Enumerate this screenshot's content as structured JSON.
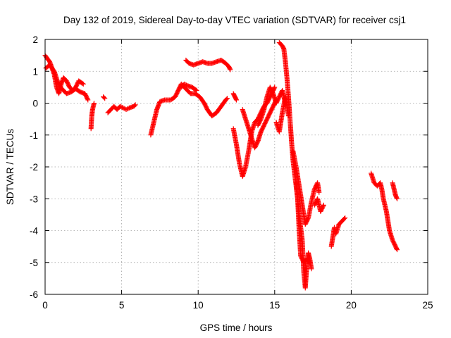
{
  "chart_data": {
    "type": "scatter",
    "title": "Day 132 of 2019, Sidereal Day-to-day VTEC variation (SDTVAR) for receiver csj1",
    "xlabel": "GPS time / hours",
    "ylabel": "SDTVAR / TECUs",
    "xlim": [
      0,
      25
    ],
    "ylim": [
      -6,
      2
    ],
    "xticks": [
      "0",
      "5",
      "10",
      "15",
      "20",
      "25"
    ],
    "yticks": [
      "-6",
      "-5",
      "-4",
      "-3",
      "-2",
      "-1",
      "0",
      "1",
      "2"
    ],
    "grid": true,
    "marker": "plus",
    "color": "#ff0000",
    "series": [
      {
        "name": "csj1",
        "segments": [
          [
            [
              0.0,
              1.5
            ],
            [
              0.15,
              1.4
            ],
            [
              0.3,
              1.3
            ],
            [
              0.45,
              1.1
            ],
            [
              0.6,
              0.9
            ],
            [
              0.75,
              0.5
            ],
            [
              0.9,
              0.3
            ],
            [
              1.05,
              0.6
            ],
            [
              1.2,
              0.8
            ],
            [
              1.4,
              0.7
            ],
            [
              1.6,
              0.5
            ],
            [
              1.8,
              0.4
            ],
            [
              2.0,
              0.5
            ],
            [
              2.2,
              0.7
            ],
            [
              2.5,
              0.6
            ]
          ],
          [
            [
              0.05,
              1.1
            ],
            [
              0.3,
              1.2
            ],
            [
              0.6,
              1.0
            ],
            [
              0.8,
              0.7
            ],
            [
              1.0,
              0.5
            ],
            [
              1.2,
              0.4
            ],
            [
              1.4,
              0.3
            ],
            [
              1.7,
              0.35
            ],
            [
              2.0,
              0.45
            ],
            [
              2.3,
              0.35
            ],
            [
              2.6,
              0.3
            ],
            [
              2.8,
              0.1
            ]
          ],
          [
            [
              3.0,
              -0.8
            ],
            [
              3.05,
              -0.4
            ],
            [
              3.1,
              -0.2
            ],
            [
              3.2,
              0.0
            ]
          ],
          [
            [
              3.8,
              0.2
            ],
            [
              3.9,
              0.15
            ]
          ],
          [
            [
              4.1,
              -0.3
            ],
            [
              4.3,
              -0.2
            ],
            [
              4.5,
              -0.1
            ],
            [
              4.7,
              -0.2
            ],
            [
              4.9,
              -0.1
            ],
            [
              5.1,
              -0.15
            ],
            [
              5.3,
              -0.2
            ],
            [
              5.5,
              -0.15
            ],
            [
              5.8,
              -0.1
            ],
            [
              5.9,
              -0.05
            ]
          ],
          [
            [
              6.9,
              -1.0
            ],
            [
              7.1,
              -0.6
            ],
            [
              7.3,
              -0.2
            ],
            [
              7.5,
              0.05
            ],
            [
              7.8,
              0.1
            ],
            [
              8.2,
              0.1
            ],
            [
              8.5,
              0.2
            ],
            [
              8.7,
              0.4
            ],
            [
              8.9,
              0.6
            ],
            [
              9.1,
              0.5
            ],
            [
              9.3,
              0.4
            ],
            [
              9.5,
              0.3
            ],
            [
              9.8,
              0.3
            ],
            [
              10.1,
              0.2
            ],
            [
              10.4,
              0.0
            ],
            [
              10.6,
              -0.2
            ],
            [
              10.9,
              -0.4
            ],
            [
              11.2,
              -0.3
            ],
            [
              11.5,
              -0.1
            ],
            [
              11.8,
              0.1
            ],
            [
              11.9,
              0.15
            ]
          ],
          [
            [
              8.9,
              0.5
            ],
            [
              9.1,
              0.6
            ],
            [
              9.3,
              0.55
            ],
            [
              9.6,
              0.5
            ],
            [
              9.9,
              0.4
            ]
          ],
          [
            [
              9.2,
              1.35
            ],
            [
              9.4,
              1.25
            ],
            [
              9.7,
              1.2
            ],
            [
              10.0,
              1.25
            ],
            [
              10.3,
              1.3
            ],
            [
              10.6,
              1.25
            ],
            [
              10.9,
              1.25
            ],
            [
              11.2,
              1.3
            ],
            [
              11.5,
              1.35
            ],
            [
              11.8,
              1.25
            ],
            [
              12.0,
              1.15
            ],
            [
              12.1,
              1.05
            ]
          ],
          [
            [
              12.3,
              0.3
            ],
            [
              12.4,
              0.2
            ],
            [
              12.5,
              0.1
            ]
          ],
          [
            [
              12.3,
              -0.8
            ],
            [
              12.5,
              -1.3
            ],
            [
              12.7,
              -1.9
            ],
            [
              12.9,
              -2.3
            ],
            [
              13.1,
              -2.0
            ],
            [
              13.3,
              -1.5
            ],
            [
              13.5,
              -0.9
            ],
            [
              13.7,
              -0.6
            ],
            [
              13.9,
              -0.5
            ],
            [
              14.1,
              -0.3
            ],
            [
              14.3,
              -0.1
            ],
            [
              14.5,
              0.0
            ],
            [
              14.7,
              0.2
            ],
            [
              14.9,
              0.4
            ],
            [
              15.0,
              0.5
            ]
          ],
          [
            [
              12.9,
              -0.2
            ],
            [
              13.1,
              -0.5
            ],
            [
              13.3,
              -0.8
            ],
            [
              13.5,
              -1.1
            ],
            [
              13.7,
              -1.4
            ],
            [
              13.9,
              -1.2
            ],
            [
              14.1,
              -0.9
            ],
            [
              14.3,
              -0.7
            ],
            [
              14.5,
              -0.5
            ],
            [
              14.7,
              -0.3
            ],
            [
              14.9,
              -0.1
            ],
            [
              15.1,
              0.1
            ]
          ],
          [
            [
              13.9,
              -0.7
            ],
            [
              14.1,
              -0.5
            ],
            [
              14.3,
              -0.2
            ],
            [
              14.5,
              0.2
            ],
            [
              14.7,
              0.5
            ],
            [
              14.9,
              0.3
            ],
            [
              15.1,
              0.0
            ],
            [
              15.3,
              0.2
            ],
            [
              15.5,
              0.4
            ],
            [
              15.7,
              0.0
            ]
          ],
          [
            [
              15.1,
              -0.6
            ],
            [
              15.3,
              -0.9
            ],
            [
              15.5,
              -0.3
            ],
            [
              15.7,
              0.2
            ],
            [
              15.9,
              -0.4
            ]
          ],
          [
            [
              15.3,
              1.9
            ],
            [
              15.5,
              1.8
            ],
            [
              15.6,
              1.7
            ],
            [
              15.7,
              1.3
            ],
            [
              15.8,
              0.8
            ],
            [
              15.9,
              0.2
            ],
            [
              16.0,
              -0.5
            ],
            [
              16.1,
              -1.2
            ],
            [
              16.2,
              -1.8
            ],
            [
              16.3,
              -2.2
            ],
            [
              16.5,
              -3.0
            ],
            [
              16.6,
              -4.0
            ],
            [
              16.7,
              -4.8
            ],
            [
              16.9,
              -5.0
            ],
            [
              17.1,
              -4.9
            ],
            [
              17.3,
              -5.0
            ]
          ],
          [
            [
              16.2,
              -1.5
            ],
            [
              16.4,
              -2.0
            ],
            [
              16.6,
              -2.6
            ],
            [
              16.8,
              -3.2
            ],
            [
              17.0,
              -3.8
            ],
            [
              17.2,
              -3.6
            ],
            [
              17.4,
              -3.1
            ],
            [
              17.6,
              -2.7
            ],
            [
              17.8,
              -2.5
            ],
            [
              17.9,
              -2.8
            ]
          ],
          [
            [
              16.4,
              -2.5
            ],
            [
              16.6,
              -3.5
            ],
            [
              16.8,
              -4.3
            ],
            [
              16.9,
              -5.3
            ],
            [
              17.0,
              -5.8
            ],
            [
              17.1,
              -5.1
            ],
            [
              17.2,
              -4.7
            ],
            [
              17.3,
              -4.9
            ],
            [
              17.4,
              -5.2
            ]
          ],
          [
            [
              17.6,
              -3.2
            ],
            [
              17.8,
              -3.0
            ],
            [
              18.0,
              -3.4
            ],
            [
              18.2,
              -3.2
            ]
          ],
          [
            [
              18.7,
              -4.5
            ],
            [
              18.8,
              -4.2
            ],
            [
              18.9,
              -3.9
            ]
          ],
          [
            [
              19.0,
              -4.1
            ],
            [
              19.2,
              -3.8
            ],
            [
              19.4,
              -3.7
            ],
            [
              19.6,
              -3.6
            ]
          ],
          [
            [
              21.3,
              -2.2
            ],
            [
              21.5,
              -2.5
            ],
            [
              21.7,
              -2.6
            ],
            [
              21.9,
              -2.5
            ],
            [
              22.0,
              -2.7
            ],
            [
              22.1,
              -3.0
            ],
            [
              22.3,
              -3.4
            ],
            [
              22.5,
              -4.0
            ],
            [
              22.7,
              -4.3
            ],
            [
              22.9,
              -4.5
            ],
            [
              23.0,
              -4.6
            ]
          ],
          [
            [
              22.7,
              -2.5
            ],
            [
              22.8,
              -2.7
            ],
            [
              22.9,
              -2.9
            ],
            [
              23.0,
              -3.0
            ]
          ]
        ]
      }
    ]
  }
}
